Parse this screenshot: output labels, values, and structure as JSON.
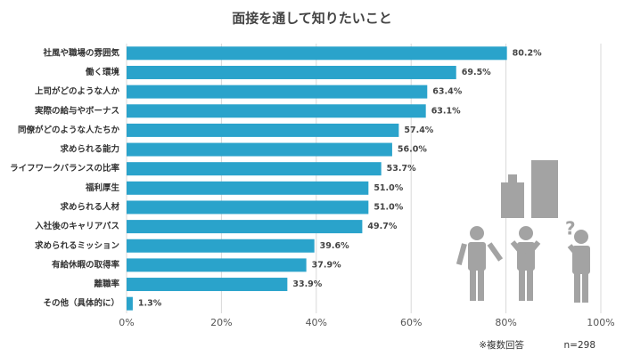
{
  "chart_data": {
    "type": "bar",
    "orientation": "horizontal",
    "title": "面接を通して知りたいこと",
    "categories": [
      "社風や職場の雰囲気",
      "働く環境",
      "上司がどのような人か",
      "実際の給与やボーナス",
      "同僚がどのような人たちか",
      "求められる能力",
      "ライフワークバランスの比率",
      "福利厚生",
      "求められる人材",
      "入社後のキャリアパス",
      "求められるミッション",
      "有給休暇の取得率",
      "離職率",
      "その他（具体的に）"
    ],
    "values": [
      80.2,
      69.5,
      63.4,
      63.1,
      57.4,
      56.0,
      53.7,
      51.0,
      51.0,
      49.7,
      39.6,
      37.9,
      33.9,
      1.3
    ],
    "value_labels": [
      "80.2%",
      "69.5%",
      "63.4%",
      "63.1%",
      "57.4%",
      "56.0%",
      "53.7%",
      "51.0%",
      "51.0%",
      "49.7%",
      "39.6%",
      "37.9%",
      "33.9%",
      "1.3%"
    ],
    "color": "#2aa3cb",
    "xlim": [
      0,
      100
    ],
    "xticks": [
      {
        "value": 0,
        "label": "0%"
      },
      {
        "value": 20,
        "label": "20%"
      },
      {
        "value": 40,
        "label": "40%"
      },
      {
        "value": 60,
        "label": "60%"
      },
      {
        "value": 80,
        "label": "80%"
      },
      {
        "value": 100,
        "label": "100%"
      }
    ],
    "grid": true,
    "notes": [
      "※複数回答",
      "n=298"
    ]
  }
}
